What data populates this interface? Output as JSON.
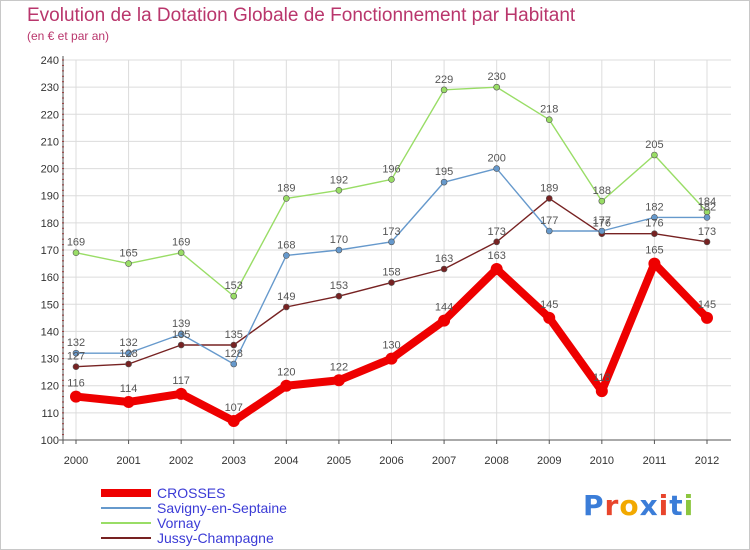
{
  "header": {
    "title": "Evolution de la Dotation Globale de Fonctionnement par Habitant",
    "subtitle": "(en € et par an)"
  },
  "chart_data": {
    "type": "line",
    "title": "Evolution de la Dotation Globale de Fonctionnement par Habitant",
    "subtitle": "(en € et par an)",
    "xlabel": "",
    "ylabel": "",
    "x": [
      "2000",
      "2001",
      "2002",
      "2003",
      "2004",
      "2005",
      "2006",
      "2007",
      "2008",
      "2009",
      "2010",
      "2011",
      "2012"
    ],
    "ylim": [
      100,
      240
    ],
    "yticks": [
      100,
      110,
      120,
      130,
      140,
      150,
      160,
      170,
      180,
      190,
      200,
      210,
      220,
      230,
      240
    ],
    "grid": true,
    "legend_position": "bottom-left",
    "series": [
      {
        "name": "CROSSES",
        "color": "#ee0000",
        "values": [
          116,
          114,
          117,
          107,
          120,
          122,
          130,
          144,
          163,
          145,
          118,
          165,
          145
        ]
      },
      {
        "name": "Savigny-en-Septaine",
        "color": "#6699cc",
        "values": [
          132,
          132,
          139,
          128,
          168,
          170,
          173,
          195,
          200,
          177,
          177,
          182,
          182
        ]
      },
      {
        "name": "Vornay",
        "color": "#99dd66",
        "values": [
          169,
          165,
          169,
          153,
          189,
          192,
          196,
          229,
          230,
          218,
          188,
          205,
          184
        ]
      },
      {
        "name": "Jussy-Champagne",
        "color": "#772222",
        "values": [
          127,
          128,
          135,
          135,
          149,
          153,
          158,
          163,
          173,
          189,
          176,
          176,
          173
        ]
      }
    ]
  },
  "brand": {
    "text": "Proxiti",
    "colors": [
      "#3b7dd8",
      "#e8452c",
      "#f2a900",
      "#3b7dd8",
      "#e8452c",
      "#3b7dd8",
      "#8cc63f"
    ]
  }
}
